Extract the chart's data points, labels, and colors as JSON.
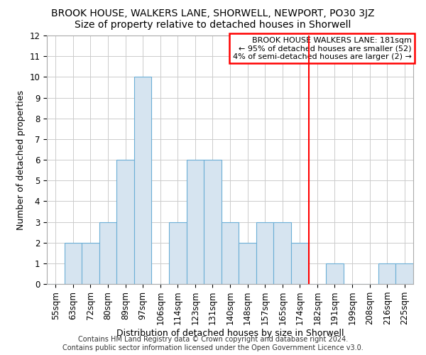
{
  "title": "BROOK HOUSE, WALKERS LANE, SHORWELL, NEWPORT, PO30 3JZ",
  "subtitle": "Size of property relative to detached houses in Shorwell",
  "xlabel": "Distribution of detached houses by size in Shorwell",
  "ylabel": "Number of detached properties",
  "footer_lines": [
    "Contains HM Land Registry data © Crown copyright and database right 2024.",
    "Contains public sector information licensed under the Open Government Licence v3.0."
  ],
  "categories": [
    "55sqm",
    "63sqm",
    "72sqm",
    "80sqm",
    "89sqm",
    "97sqm",
    "106sqm",
    "114sqm",
    "123sqm",
    "131sqm",
    "140sqm",
    "148sqm",
    "157sqm",
    "165sqm",
    "174sqm",
    "182sqm",
    "191sqm",
    "199sqm",
    "208sqm",
    "216sqm",
    "225sqm"
  ],
  "values": [
    0,
    2,
    2,
    3,
    6,
    10,
    0,
    3,
    6,
    6,
    3,
    2,
    3,
    3,
    2,
    0,
    1,
    0,
    0,
    1,
    1
  ],
  "bar_fill_color": "#d6e4f0",
  "bar_edge_color": "#6baed6",
  "highlight_line_color": "red",
  "highlight_index": 15,
  "annotation_title": "BROOK HOUSE WALKERS LANE: 181sqm",
  "annotation_line1": "← 95% of detached houses are smaller (52)",
  "annotation_line2": "4% of semi-detached houses are larger (2) →",
  "annotation_box_color": "white",
  "annotation_border_color": "red",
  "ylim": [
    0,
    12
  ],
  "yticks": [
    0,
    1,
    2,
    3,
    4,
    5,
    6,
    7,
    8,
    9,
    10,
    11,
    12
  ],
  "grid_color": "#cccccc",
  "title_fontsize": 10,
  "subtitle_fontsize": 10,
  "axis_fontsize": 9,
  "tick_fontsize": 8.5,
  "footer_fontsize": 7
}
